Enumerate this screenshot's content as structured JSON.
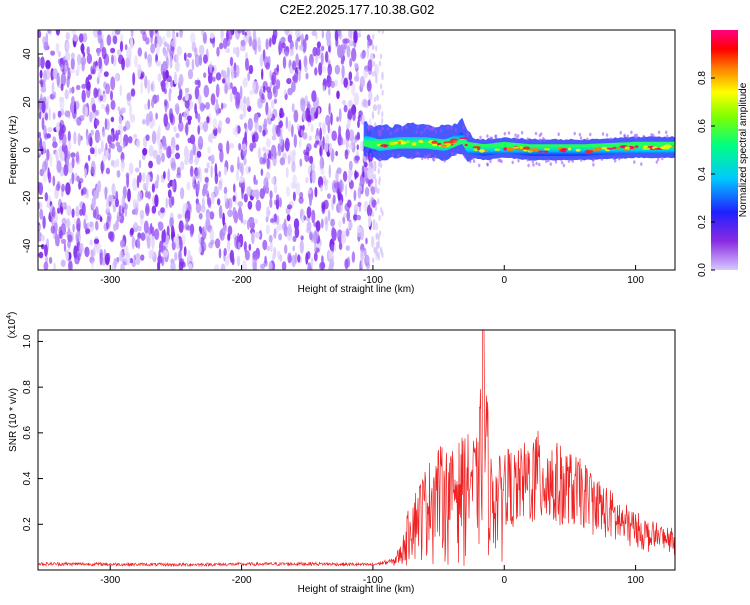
{
  "title": "C2E2.2025.177.10.38.G02",
  "colors": {
    "snr_line": "#ee2222",
    "noise_dot": "#7b22e6",
    "frame": "#000000"
  },
  "chart_data": [
    {
      "type": "heatmap",
      "title": "C2E2.2025.177.10.38.G02",
      "xlabel": "Height of straight line (km)",
      "ylabel": "Frequency (Hz)",
      "xlim": [
        -355,
        130
      ],
      "ylim": [
        -50,
        50
      ],
      "xticks": [
        -300,
        -200,
        -100,
        0,
        100
      ],
      "yticks": [
        -40,
        -20,
        0,
        20,
        40
      ],
      "colorbar": {
        "label": "Normalized spectral amplitude",
        "range": [
          0,
          1
        ],
        "ticks": [
          "0.0",
          "0.2",
          "0.4",
          "0.6",
          "0.8"
        ],
        "tick_values": [
          0.0,
          0.2,
          0.4,
          0.6,
          0.8
        ],
        "colormap": "rainbow (violet - blue - cyan - green - yellow - red - magenta)"
      },
      "regions": [
        {
          "name": "noise",
          "x_range": [
            -355,
            -97
          ],
          "freq_range": [
            -50,
            50
          ],
          "amplitude": [
            0.0,
            0.2
          ]
        },
        {
          "name": "signal_band",
          "x_range": [
            -107,
            130
          ],
          "freq_center_track": [
            [
              -107,
              4
            ],
            [
              -95,
              2
            ],
            [
              -80,
              3
            ],
            [
              -60,
              3
            ],
            [
              -45,
              2
            ],
            [
              -32,
              5
            ],
            [
              -28,
              1
            ],
            [
              -15,
              0
            ],
            [
              0,
              1
            ],
            [
              20,
              0
            ],
            [
              60,
              0
            ],
            [
              100,
              1
            ],
            [
              130,
              1
            ]
          ],
          "freq_halfwidth": 4,
          "amplitude_peak": 0.95
        }
      ]
    },
    {
      "type": "line",
      "xlabel": "Height of straight line (km)",
      "ylabel": "SNR (10 * v/v)",
      "y_multiplier": "(x10^4)",
      "xlim": [
        -355,
        130
      ],
      "ylim": [
        0,
        1.05
      ],
      "xticks": [
        -300,
        -200,
        -100,
        0,
        100
      ],
      "yticks": [
        0.2,
        0.4,
        0.6,
        0.8,
        1.0
      ],
      "series": [
        {
          "envelope": {
            "x": [
              -355,
              -250,
              -150,
              -100,
              -85,
              -78,
              -72,
              -60,
              -50,
              -40,
              -30,
              -20,
              -16,
              -10,
              -5,
              0,
              10,
              20,
              30,
              40,
              50,
              60,
              70,
              80,
              90,
              100,
              110,
              120,
              130
            ],
            "y": [
              0.035,
              0.03,
              0.035,
              0.03,
              0.05,
              0.12,
              0.3,
              0.45,
              0.55,
              0.52,
              0.6,
              0.58,
              1.05,
              0.5,
              0.48,
              0.55,
              0.52,
              0.6,
              0.62,
              0.56,
              0.52,
              0.48,
              0.42,
              0.36,
              0.3,
              0.26,
              0.22,
              0.2,
              0.18
            ]
          }
        }
      ]
    }
  ]
}
